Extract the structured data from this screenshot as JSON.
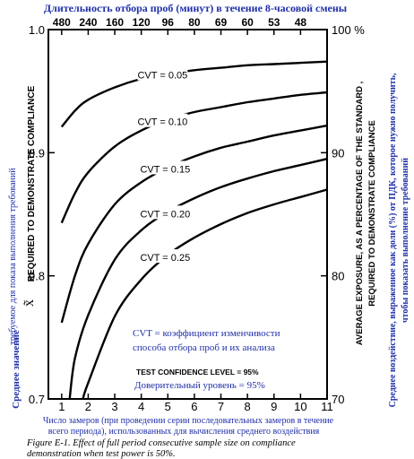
{
  "chart_data": {
    "type": "line",
    "top_note": "Длительность отбора проб (минут) в течение 8-часовой смены",
    "top_ticks": [
      "480",
      "240",
      "160",
      "120",
      "96",
      "80",
      "69",
      "60",
      "53",
      "48"
    ],
    "x_ticks": [
      "1",
      "2",
      "3",
      "4",
      "5",
      "6",
      "7",
      "8",
      "9",
      "10",
      "11"
    ],
    "y_left_ticks": [
      "1.0",
      "0.9",
      "0.8",
      "0.7"
    ],
    "y_right_ticks": [
      "100 %",
      "90",
      "80",
      "70"
    ],
    "xlim": [
      0.5,
      11
    ],
    "ylim": [
      0.7,
      1.0
    ],
    "ylabel_left": "REQUIRED TO DEMONSTRATE COMPLIANCE",
    "ylabel_left_symbol": "x̃",
    "ylabel_left_ru_1": "требуемое для показа выполнения требований",
    "ylabel_left_ru_2": "Среднее значение",
    "ylabel_right_1": "AVERAGE EXPOSURE, AS A PERCENTAGE OF THE STANDARD ,",
    "ylabel_right_2": "REQUIRED TO DEMONSTRATE COMPLIANCE",
    "ylabel_right_ru_1": "Среднее воздействие, выраженное как доли (%) от ПДК, которое нужно получить,",
    "ylabel_right_ru_2": "чтобы показать выполнение требований",
    "xlabel_ru_1": "Число замеров (при проведении серии последовательных замеров в течение",
    "xlabel_ru_2": "всего периода), использованных для вычисления среднего воздействия",
    "legend_cv": "CVT = коэффициент изменчивости",
    "legend_cv_2": "способа отбора проб и их анализа",
    "confidence_en": "TEST CONFIDENCE LEVEL = 95%",
    "confidence_ru": "Доверительный уровень = 95%",
    "caption": "Figure E-1. Effect of full period consecutive sample size on compliance demonstration when test power is 50%.",
    "series": [
      {
        "name": "CVT = 0.05",
        "x": [
          1,
          1.5,
          2,
          3,
          4,
          5,
          6,
          7,
          8,
          9,
          10,
          11
        ],
        "y": [
          0.921,
          0.934,
          0.943,
          0.953,
          0.96,
          0.964,
          0.967,
          0.969,
          0.971,
          0.972,
          0.973,
          0.974
        ]
      },
      {
        "name": "CVT = 0.10",
        "x": [
          1,
          1.5,
          2,
          3,
          4,
          5,
          6,
          7,
          8,
          9,
          10,
          11
        ],
        "y": [
          0.843,
          0.867,
          0.884,
          0.905,
          0.918,
          0.927,
          0.933,
          0.937,
          0.941,
          0.944,
          0.947,
          0.949
        ]
      },
      {
        "name": "CVT = 0.15",
        "x": [
          1,
          1.5,
          2,
          3,
          4,
          5,
          6,
          7,
          8,
          9,
          10,
          11
        ],
        "y": [
          0.762,
          0.8,
          0.826,
          0.858,
          0.876,
          0.888,
          0.897,
          0.904,
          0.909,
          0.914,
          0.918,
          0.922
        ]
      },
      {
        "name": "CVT = 0.20",
        "x": [
          1.3,
          1.5,
          2,
          3,
          4,
          5,
          6,
          7,
          8,
          9,
          10,
          11
        ],
        "y": [
          0.7,
          0.733,
          0.768,
          0.813,
          0.837,
          0.852,
          0.863,
          0.872,
          0.879,
          0.885,
          0.89,
          0.895
        ]
      },
      {
        "name": "CVT = 0.25",
        "x": [
          1.8,
          2,
          3,
          4,
          5,
          6,
          7,
          8,
          9,
          10,
          11
        ],
        "y": [
          0.7,
          0.713,
          0.767,
          0.797,
          0.817,
          0.831,
          0.842,
          0.851,
          0.858,
          0.864,
          0.87
        ]
      }
    ]
  }
}
